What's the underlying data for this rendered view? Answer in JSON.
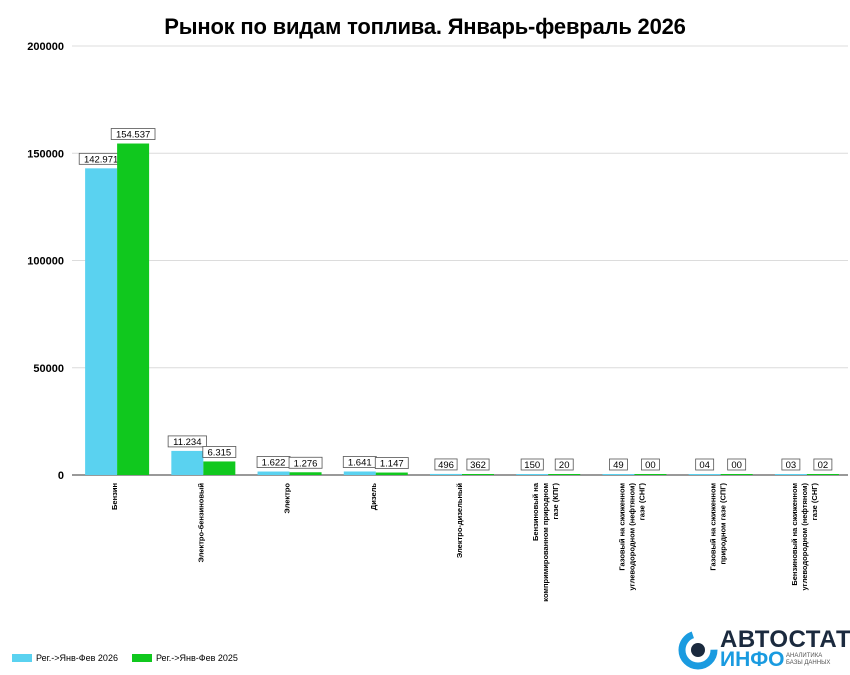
{
  "chart_data": {
    "type": "bar",
    "title": "Рынок по видам топлива. Январь-февраль 2026",
    "xlabel": "",
    "ylabel": "",
    "ylim": [
      0,
      200000
    ],
    "yticks": [
      0,
      50000,
      100000,
      150000,
      200000
    ],
    "ytick_labels": [
      "0",
      "50000",
      "100000",
      "150000",
      "200000"
    ],
    "grid": true,
    "legend_position": "bottom-left",
    "categories": [
      "Бензин",
      "Электро-бензиновый",
      "Электро",
      "Дизель",
      "Электро-дизельный",
      "Бензиновый на компримированном природном газе (КПГ)",
      "Газовый на сжиженном углеводородном (нефтяном) газе (СНГ)",
      "Газовый на сжиженном природном газе (СПГ)",
      "Бензиновый на сжиженном углеводородном (нефтяном) газе (СНГ)"
    ],
    "series": [
      {
        "name": "Рег.->Янв-Фев 2026",
        "color": "#5ad2f0",
        "values": [
          142971,
          11234,
          1622,
          1641,
          496,
          150,
          49,
          4,
          3
        ],
        "labels": [
          "142.971",
          "11.234",
          "1.622",
          "1.641",
          "496",
          "150",
          "49",
          "04",
          "03"
        ]
      },
      {
        "name": "Рег.->Янв-Фев 2025",
        "color": "#10c81e",
        "values": [
          154537,
          6315,
          1276,
          1147,
          362,
          20,
          0,
          0,
          2
        ],
        "labels": [
          "154.537",
          "6.315",
          "1.276",
          "1.147",
          "362",
          "20",
          "00",
          "00",
          "02"
        ]
      }
    ]
  },
  "logo": {
    "top_word": "АВТОСТАТ",
    "bottom_word": "ИНФО",
    "subtitle": "АНАЛИТИКА БАЗЫ ДАННЫХ"
  }
}
